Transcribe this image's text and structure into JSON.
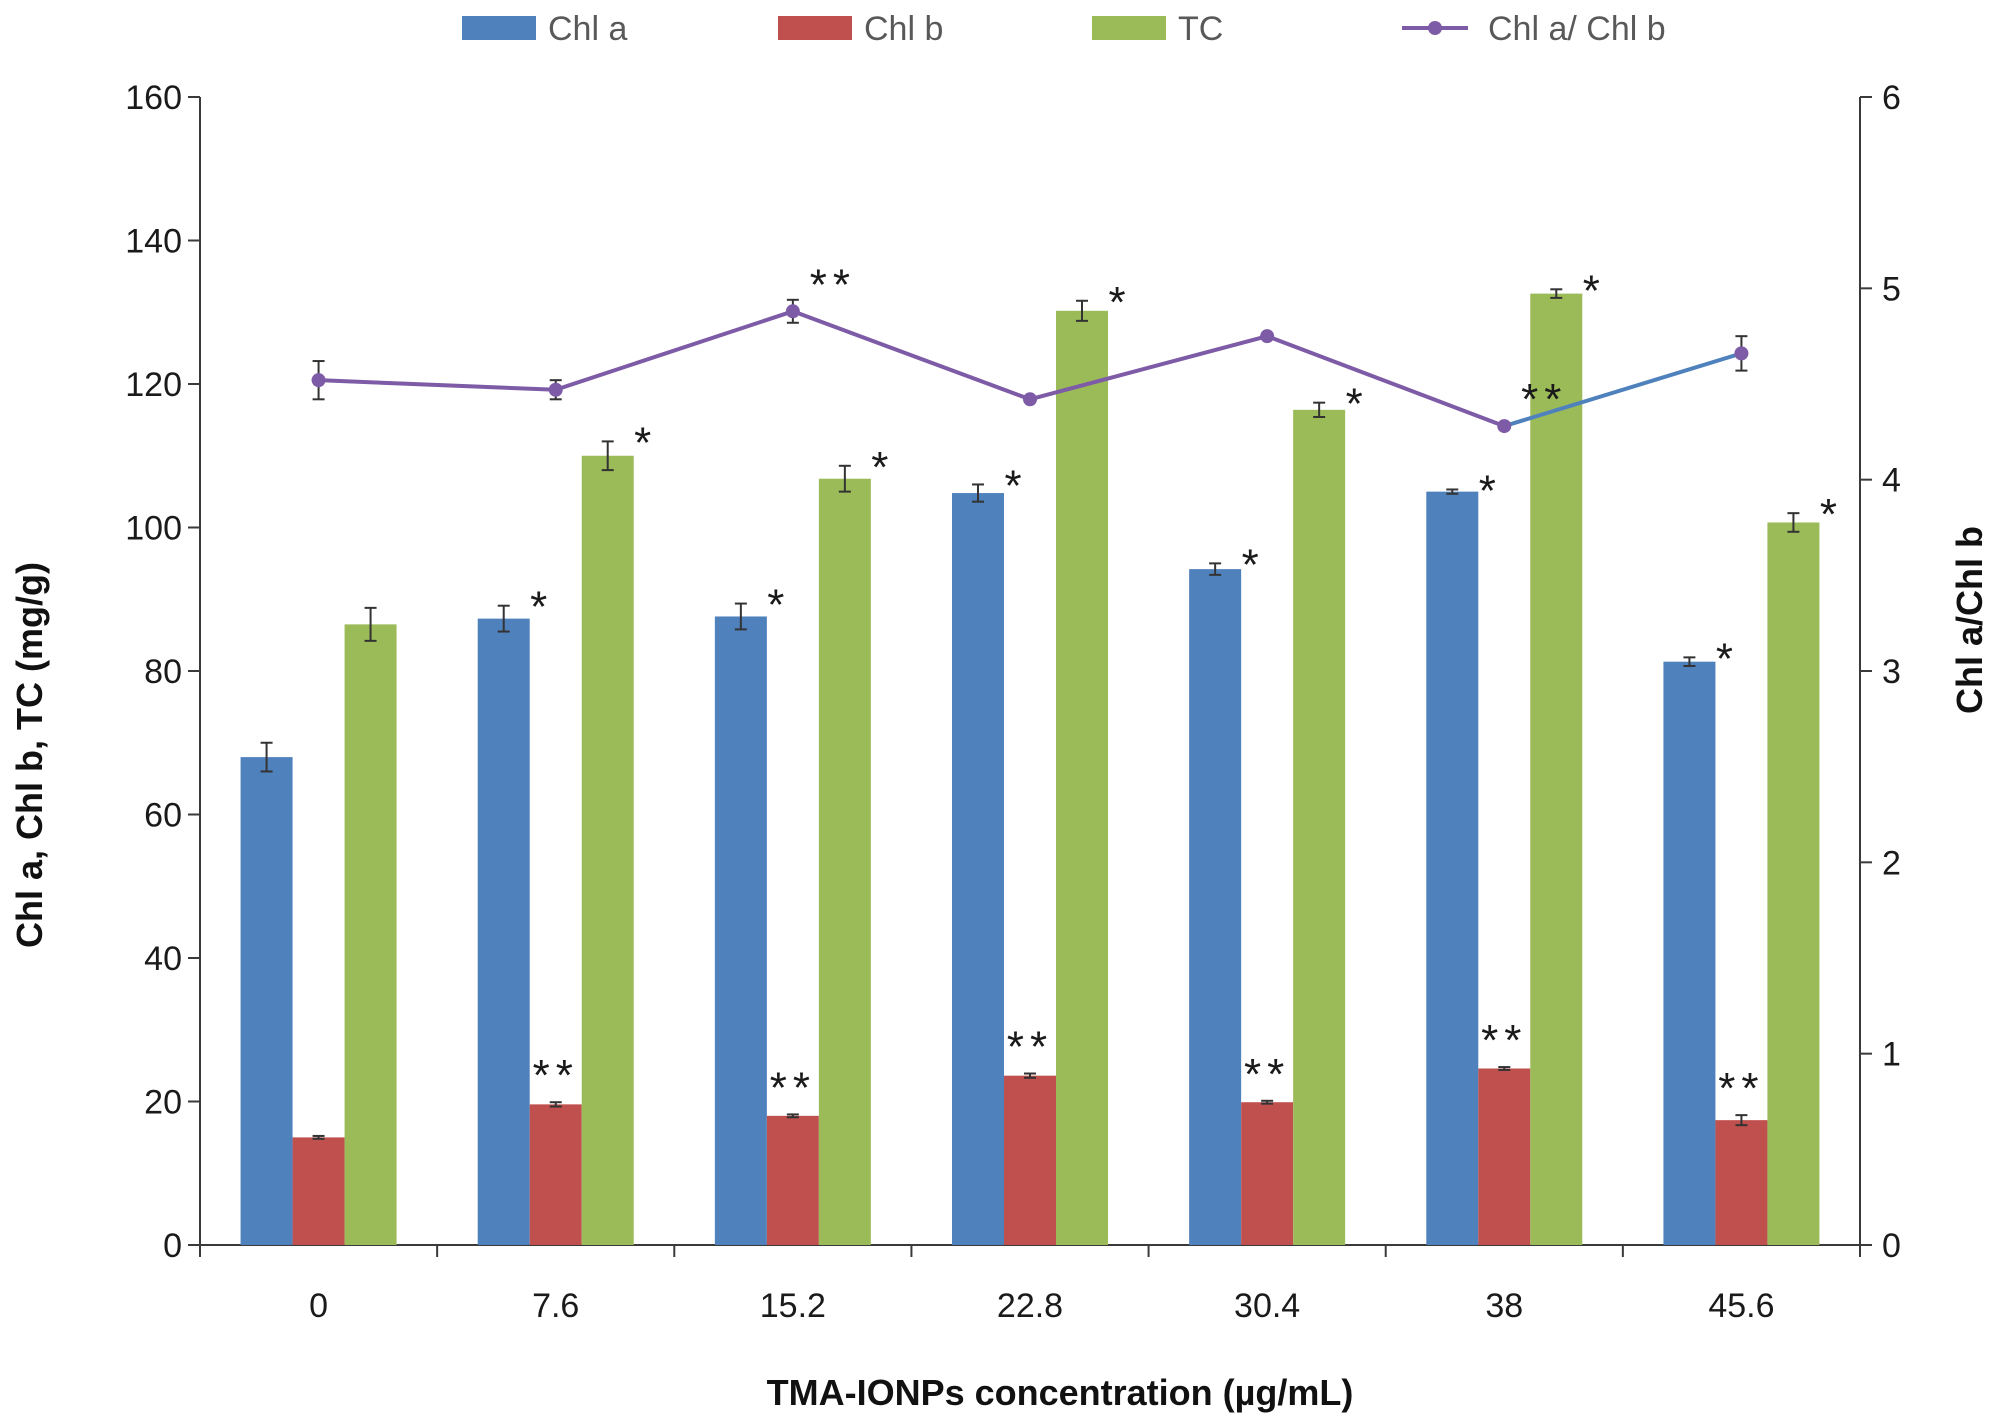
{
  "chart_data": {
    "type": "bar",
    "categories": [
      "0",
      "7.6",
      "15.2",
      "22.8",
      "30.4",
      "38",
      "45.6"
    ],
    "xlabel": "TMA-IONPs concentration (µg/mL)",
    "ylabel": "Chl a, Chl b, TC (mg/g)",
    "y2label": "Chl a/Chl b",
    "ylim": [
      0,
      160
    ],
    "yticks": [
      0,
      20,
      40,
      60,
      80,
      100,
      120,
      140,
      160
    ],
    "y2lim": [
      0,
      6
    ],
    "y2ticks": [
      0,
      1,
      2,
      3,
      4,
      5,
      6
    ],
    "grid": false,
    "legend_position": "top",
    "series": [
      {
        "name": "Chl a",
        "kind": "bar",
        "color": "#4f81bd",
        "values": [
          68.0,
          87.3,
          87.6,
          104.8,
          94.2,
          105.0,
          81.3
        ],
        "errors": [
          2.0,
          1.8,
          1.8,
          1.2,
          0.8,
          0.3,
          0.6
        ],
        "significance": [
          "",
          "*",
          "*",
          "*",
          "*",
          "*",
          "*"
        ]
      },
      {
        "name": "Chl b",
        "kind": "bar",
        "color": "#c0504d",
        "values": [
          15.0,
          19.6,
          18.0,
          23.6,
          19.9,
          24.6,
          17.4
        ],
        "errors": [
          0.2,
          0.3,
          0.2,
          0.3,
          0.2,
          0.2,
          0.7
        ],
        "significance": [
          "",
          "**",
          "**",
          "**",
          "**",
          "**",
          "**"
        ]
      },
      {
        "name": "TC",
        "kind": "bar",
        "color": "#9bbb59",
        "values": [
          86.5,
          110.0,
          106.8,
          130.2,
          116.4,
          132.6,
          100.7
        ],
        "errors": [
          2.3,
          2.0,
          1.8,
          1.4,
          1.0,
          0.6,
          1.3
        ],
        "significance": [
          "",
          "*",
          "*",
          "*",
          "*",
          "*",
          "*"
        ]
      },
      {
        "name": "Chl a/ Chl b",
        "kind": "line",
        "axis": "right",
        "color": "#7d5ba6",
        "last_segment_color": "#4f81bd",
        "values": [
          4.52,
          4.47,
          4.88,
          4.42,
          4.75,
          4.28,
          4.66
        ],
        "errors": [
          0.1,
          0.05,
          0.06,
          0.0,
          0.0,
          0.0,
          0.09
        ],
        "significance": [
          "",
          "",
          "**",
          "",
          "",
          "**",
          ""
        ]
      }
    ]
  }
}
